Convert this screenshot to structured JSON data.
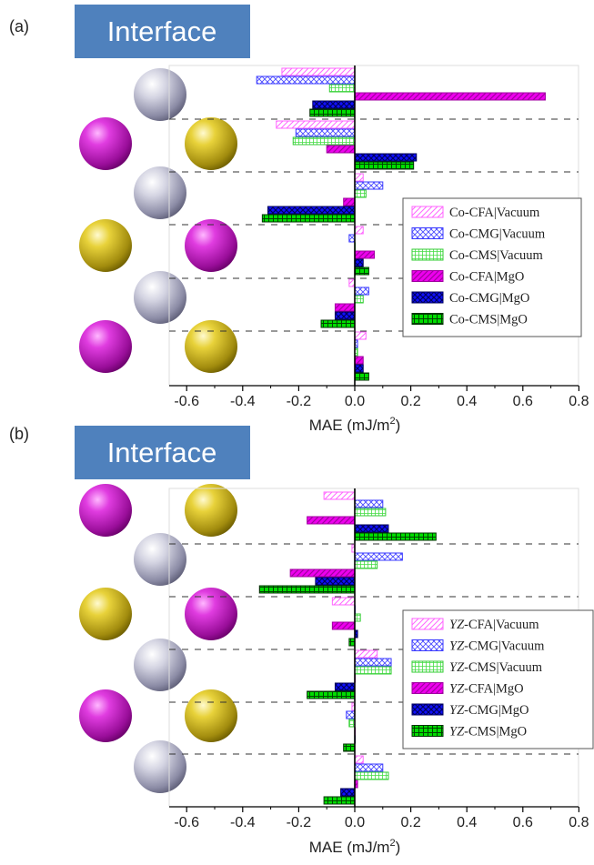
{
  "chart_data": [
    {
      "type": "bar",
      "orientation": "horizontal",
      "panel_label": "(a)",
      "header": "Interface",
      "xlabel": "MAE (mJ/m",
      "xlabel_sup": "2",
      "xlabel_close": ")",
      "xlim": [
        -0.6,
        0.8
      ],
      "xticks": [
        "-0.6",
        "-0.4",
        "-0.2",
        "0.0",
        "0.2",
        "0.4",
        "0.6",
        "0.8"
      ],
      "legend_position": "right",
      "legend_prefix": "Co",
      "series": [
        {
          "name": "-CFA|Vacuum",
          "style": "cfa-vac",
          "values": [
            -0.26,
            -0.28,
            0.03,
            0.03,
            -0.02,
            0.04
          ]
        },
        {
          "name": "-CMG|Vacuum",
          "style": "cmg-vac",
          "values": [
            -0.35,
            -0.21,
            0.1,
            -0.02,
            0.05,
            0.01
          ]
        },
        {
          "name": "-CMS|Vacuum",
          "style": "cms-vac",
          "values": [
            -0.09,
            -0.22,
            0.04,
            0.0,
            0.03,
            0.01
          ]
        },
        {
          "name": "-CFA|MgO",
          "style": "cfa-mgo",
          "values": [
            0.68,
            -0.1,
            -0.04,
            0.07,
            -0.07,
            0.03
          ]
        },
        {
          "name": "-CMG|MgO",
          "style": "cmg-mgo",
          "values": [
            -0.15,
            0.22,
            -0.31,
            0.03,
            -0.07,
            0.03
          ]
        },
        {
          "name": "-CMS|MgO",
          "style": "cms-mgo",
          "values": [
            -0.16,
            0.21,
            -0.33,
            0.05,
            -0.12,
            0.05
          ]
        }
      ],
      "atoms": [
        "silver",
        "magenta",
        "yellow",
        "silver",
        "yellow",
        "magenta",
        "silver",
        "magenta",
        "yellow"
      ]
    },
    {
      "type": "bar",
      "orientation": "horizontal",
      "panel_label": "(b)",
      "header": "Interface",
      "xlabel": "MAE (mJ/m",
      "xlabel_sup": "2",
      "xlabel_close": ")",
      "xlim": [
        -0.6,
        0.8
      ],
      "xticks": [
        "-0.6",
        "-0.4",
        "-0.2",
        "0.0",
        "0.2",
        "0.4",
        "0.6",
        "0.8"
      ],
      "legend_position": "right",
      "legend_prefix": "YZ",
      "series": [
        {
          "name": "-CFA|Vacuum",
          "style": "cfa-vac",
          "values": [
            -0.11,
            -0.01,
            -0.08,
            0.08,
            -0.01,
            0.03
          ]
        },
        {
          "name": "-CMG|Vacuum",
          "style": "cmg-vac",
          "values": [
            0.1,
            0.17,
            0.0,
            0.13,
            -0.03,
            0.1
          ]
        },
        {
          "name": "-CMS|Vacuum",
          "style": "cms-vac",
          "values": [
            0.11,
            0.08,
            0.02,
            0.13,
            -0.02,
            0.12
          ]
        },
        {
          "name": "-CFA|MgO",
          "style": "cfa-mgo",
          "values": [
            -0.17,
            -0.23,
            -0.08,
            0.0,
            0.0,
            0.01
          ]
        },
        {
          "name": "-CMG|MgO",
          "style": "cmg-mgo",
          "values": [
            0.12,
            -0.14,
            0.01,
            -0.07,
            0.0,
            -0.05
          ]
        },
        {
          "name": "-CMS|MgO",
          "style": "cms-mgo",
          "values": [
            0.29,
            -0.34,
            -0.02,
            -0.17,
            -0.04,
            -0.11
          ]
        }
      ],
      "atoms": [
        "magenta",
        "yellow",
        "silver",
        "yellow",
        "magenta",
        "silver",
        "magenta",
        "yellow",
        "silver"
      ]
    }
  ]
}
